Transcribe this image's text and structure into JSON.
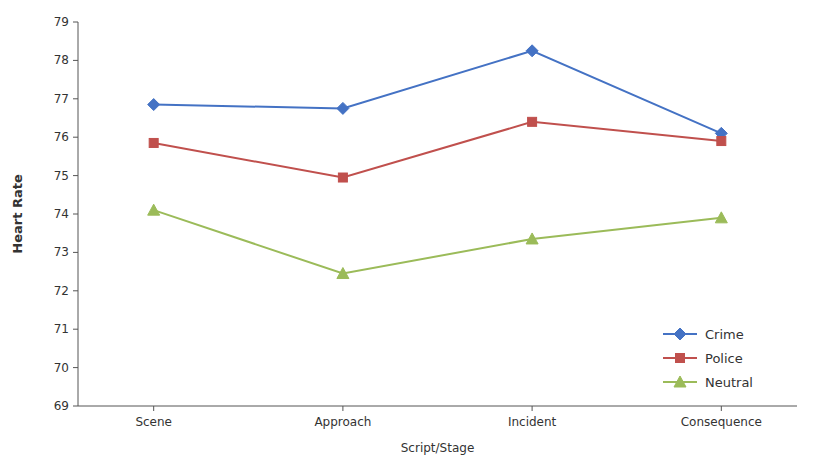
{
  "chart_data": {
    "type": "line",
    "categories": [
      "Scene",
      "Approach",
      "Incident",
      "Consequence"
    ],
    "series": [
      {
        "name": "Crime",
        "color": "#4472C4",
        "marker": "diamond",
        "values": [
          76.85,
          76.75,
          78.25,
          76.1
        ]
      },
      {
        "name": "Police",
        "color": "#C0504D",
        "marker": "square",
        "values": [
          75.85,
          74.95,
          76.4,
          75.9
        ]
      },
      {
        "name": "Neutral",
        "color": "#9BBB59",
        "marker": "triangle",
        "values": [
          74.1,
          72.45,
          73.35,
          73.9
        ]
      }
    ],
    "ylabel": "Heart Rate",
    "xlabel": "Script/Stage",
    "ylim": [
      69,
      79
    ],
    "yticks": [
      69,
      70,
      71,
      72,
      73,
      74,
      75,
      76,
      77,
      78,
      79
    ],
    "legend": "lower right"
  }
}
